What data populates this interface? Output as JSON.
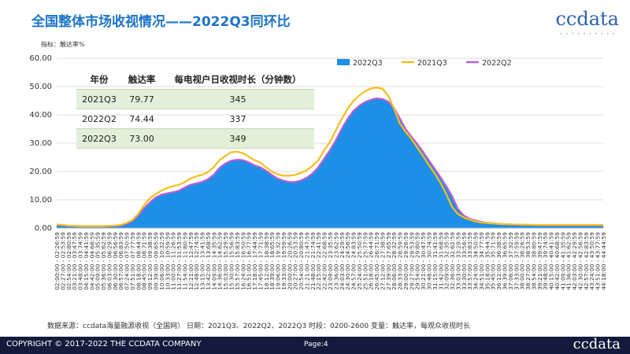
{
  "header": {
    "title": "全国整体市场收视情况——2022Q3同环比",
    "logo": "ccdata",
    "logo_dots": "• • • • • • • • • •"
  },
  "indicator": "指标：触达率%",
  "table": {
    "headers": [
      "年份",
      "触达率",
      "每电视户日收视时长（分钟数）"
    ],
    "rows": [
      [
        "2021Q3",
        "79.77",
        "345"
      ],
      [
        "2022Q2",
        "74.44",
        "337"
      ],
      [
        "2022Q3",
        "73.00",
        "349"
      ]
    ]
  },
  "source": "数据来源：ccdata海量融源收视（全国网）  日期：2021Q3、2022Q2、2022Q3  时段：0200-2600  变量：触达率，每观众收视时长",
  "footer": {
    "copyright": "COPYRIGHT © 2017-2022 THE CCDATA COMPANY",
    "page": "Page:4",
    "logo": "ccdata"
  },
  "chart_data": {
    "type": "area",
    "ylim": [
      0,
      60
    ],
    "yticks": [
      "0.00",
      "10.00",
      "20.00",
      "30.00",
      "40.00",
      "50.00",
      "60.00"
    ],
    "x_start_minutes": 120,
    "x_step_minutes": 27,
    "x_count": 95,
    "legend_position": "top-right",
    "series": [
      {
        "name": "2022Q3",
        "style": "area",
        "color": "#1d8fe6",
        "values": [
          1.2,
          1.0,
          0.8,
          0.7,
          0.6,
          0.6,
          0.6,
          0.6,
          0.6,
          0.7,
          0.8,
          1.0,
          1.5,
          2.5,
          4.5,
          7.0,
          9.0,
          10.8,
          11.8,
          12.3,
          12.7,
          13.2,
          14.3,
          15.3,
          15.8,
          16.3,
          17.3,
          18.8,
          21.3,
          22.8,
          23.8,
          24.2,
          24.0,
          23.3,
          22.2,
          21.5,
          20.3,
          18.8,
          17.5,
          16.8,
          16.3,
          16.3,
          16.8,
          17.8,
          19.3,
          21.5,
          24.5,
          27.5,
          31.0,
          35.0,
          38.5,
          41.3,
          43.2,
          44.5,
          45.3,
          45.8,
          45.6,
          44.7,
          42.5,
          38.8,
          35.0,
          32.3,
          29.8,
          27.0,
          24.0,
          21.0,
          18.0,
          14.8,
          11.3,
          6.8,
          4.5,
          3.3,
          2.7,
          2.2,
          1.9,
          1.7,
          1.5,
          1.4,
          1.3,
          1.2,
          1.2,
          1.1,
          1.1,
          1.0,
          1.0,
          1.0,
          1.0,
          1.0,
          1.0,
          1.0,
          1.0,
          1.0,
          1.0,
          1.0,
          1.0
        ]
      },
      {
        "name": "2021Q3",
        "style": "line",
        "color": "#f5be1b",
        "values": [
          1.3,
          1.1,
          0.9,
          0.8,
          0.7,
          0.7,
          0.7,
          0.7,
          0.7,
          0.8,
          0.9,
          1.1,
          1.8,
          2.8,
          5.0,
          8.0,
          10.5,
          12.0,
          13.2,
          14.2,
          14.8,
          15.3,
          16.2,
          17.5,
          18.3,
          18.8,
          19.8,
          21.5,
          24.0,
          25.5,
          26.8,
          27.0,
          26.5,
          25.3,
          24.0,
          23.2,
          21.5,
          20.0,
          19.0,
          18.5,
          18.5,
          18.8,
          19.5,
          20.5,
          22.0,
          24.0,
          27.5,
          30.5,
          34.5,
          38.5,
          42.0,
          44.8,
          46.8,
          48.3,
          49.3,
          49.6,
          49.3,
          46.8,
          42.3,
          37.0,
          34.0,
          31.5,
          28.5,
          25.5,
          22.3,
          19.3,
          16.0,
          12.0,
          7.5,
          5.0,
          3.8,
          3.0,
          2.4,
          2.0,
          1.8,
          1.6,
          1.5,
          1.4,
          1.3,
          1.3,
          1.2,
          1.2,
          1.1,
          1.1,
          1.1,
          1.1,
          1.1,
          1.1,
          1.1,
          1.1,
          1.1,
          1.1,
          1.1,
          1.1,
          1.1
        ]
      },
      {
        "name": "2022Q2",
        "style": "line",
        "color": "#b85fd6",
        "values": [
          1.2,
          1.0,
          0.8,
          0.7,
          0.6,
          0.6,
          0.6,
          0.6,
          0.6,
          0.7,
          0.8,
          1.0,
          1.5,
          2.5,
          4.5,
          7.0,
          9.0,
          10.8,
          11.8,
          12.3,
          12.7,
          13.2,
          14.3,
          15.3,
          15.8,
          16.3,
          17.3,
          18.8,
          21.3,
          22.8,
          23.8,
          24.2,
          24.0,
          23.3,
          22.2,
          21.5,
          20.3,
          18.8,
          17.5,
          16.8,
          16.3,
          16.3,
          16.8,
          17.8,
          19.3,
          21.5,
          24.5,
          27.5,
          31.0,
          35.0,
          38.5,
          41.3,
          43.2,
          44.5,
          45.3,
          45.8,
          45.6,
          44.7,
          42.5,
          38.8,
          35.0,
          32.3,
          29.8,
          27.0,
          24.0,
          21.0,
          18.0,
          14.8,
          11.3,
          6.8,
          4.5,
          3.3,
          2.7,
          2.2,
          1.9,
          1.7,
          1.5,
          1.4,
          1.3,
          1.2,
          1.2,
          1.1,
          1.1,
          1.0,
          1.0,
          1.0,
          1.0,
          1.0,
          1.0,
          1.0,
          1.0,
          1.0,
          1.0,
          1.0,
          1.0
        ]
      }
    ]
  }
}
